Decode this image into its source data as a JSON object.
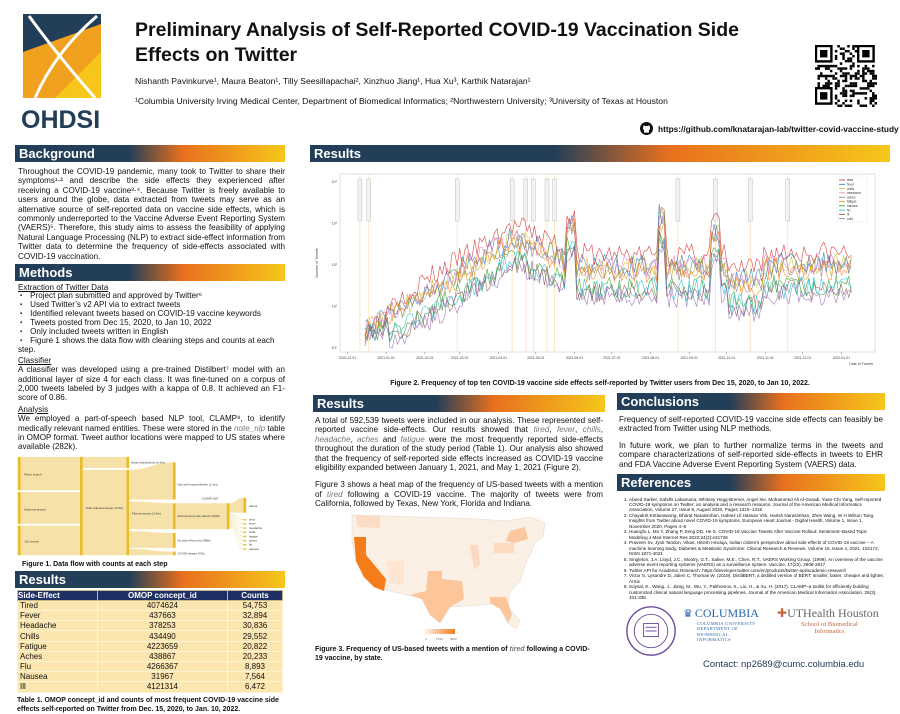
{
  "header": {
    "logo_text": "OHDSI",
    "title": "Preliminary Analysis of Self-Reported COVID-19 Vaccination Side Effects on Twitter",
    "authors": "Nishanth Pavinkurve¹, Maura Beaton¹, Tilly Seesillapachai², Xinzhuo Jiang¹, Hua Xu³, Karthik Natarajan¹",
    "affiliations": "¹Columbia University Irving Medical Center, Department of Biomedical Informatics; ²Northwestern University; ³University of Texas at Houston",
    "github_url": "https://github.com/knatarajan-lab/twitter-covid-vaccine-study"
  },
  "background": {
    "heading": "Background",
    "text": "Throughout the COVID-19 pandemic, many took to Twitter to share their symptoms¹·² and describe the side effects they experienced after receiving a COVID-19 vaccine³·⁴. Because Twitter is freely available to users around the globe, data extracted from tweets may serve as an alternative source of self-reported data on vaccine side effects, which is commonly underreported to the Vaccine Adverse Event Reporting System (VAERS)⁵. Therefore, this study aims to assess the feasibility of applying Natural Language Processing (NLP) to extract side-effect information from Twitter data to determine the frequency of side-effects associated with COVID-19 vaccination."
  },
  "methods": {
    "heading": "Methods",
    "extraction_title": "Extraction of Twitter Data",
    "bullets": [
      "Project plan submitted and approved by Twitter⁶",
      "Used Twitter’s v2 API via to extract tweets",
      "Identified relevant tweets based on COVID-19 vaccine keywords",
      "Tweets posted from Dec 15, 2020, to Jan 10, 2022",
      "Only included tweets written in English",
      "Figure 1 shows the data flow with cleaning steps and counts at each step."
    ],
    "classifier_title": "Classifier",
    "classifier_text": "A classifier was developed using a pre-trained Distilbert⁷ model with an additional layer of size 4 for each class. It was fine-tuned on a corpus of 2,000 tweets labeled by 3 judges with a kappa of 0.8. It achieved an F1-score of 0.86.",
    "analysis_title": "Analysis",
    "analysis_parts": [
      {
        "t": "We employed a part-of-speech based NLP tool, CLAMP⁸, to identify medically relevant named entities. These were stored in the "
      },
      {
        "t": "note_nlp",
        "i": true
      },
      {
        "t": " table in OMOP format. Tweet author locations were mapped to US states where available (282k)."
      }
    ]
  },
  "figure1": {
    "caption": "Figure 1. Data flow with counts at each step",
    "nodes": {
      "pfizer": "Pfizer search",
      "moderna": "Moderna search",
      "jnj": "J&J search",
      "total": "Total collected tweets (3.8m)",
      "news": "News articles/bots (0.4m)",
      "filtered": "Filtered tweets (3.4m)",
      "nonself": "Non-self reported/other (1.3m)",
      "selfrep": "Self-reported side-effects (600k)",
      "noside": "No side-effect info (480k)",
      "covid": "COVID-related (70k)",
      "clamp": "CLAMP NLP",
      "outs": [
        "others",
        "tired",
        "fever",
        "headache",
        "chills",
        "fatigue",
        "aches",
        "flu",
        "nausea"
      ]
    }
  },
  "table1": {
    "heading": "Results",
    "columns": [
      "Side-Effect",
      "OMOP concept_id",
      "Counts"
    ],
    "rows": [
      [
        "Tired",
        "4074624",
        "54,753"
      ],
      [
        "Fever",
        "437663",
        "32,894"
      ],
      [
        "Headache",
        "378253",
        "30,836"
      ],
      [
        "Chills",
        "434490",
        "29,552"
      ],
      [
        "Fatigue",
        "4223659",
        "20,822"
      ],
      [
        "Aches",
        "438867",
        "20,233"
      ],
      [
        "Flu",
        "4266367",
        "8,893"
      ],
      [
        "Nausea",
        "31967",
        "7,564"
      ],
      [
        "Ill",
        "4121314",
        "6,472"
      ]
    ],
    "caption": "Table 1. OMOP concept_id and counts of most frequent COVID-19 vaccine side effects self-reported on Twitter from Dec. 15, 2020, to Jan. 10, 2022."
  },
  "figure2": {
    "heading": "Results",
    "caption": "Figure 2. Frequency of top ten COVID-19 vaccine side effects self-reported by Twitter users from Dec 15, 2020, to Jan 10, 2022.",
    "xlabel": "Date of Tweets",
    "ylabel": "Number of Tweets",
    "scale": "log",
    "yticks": [
      "10⁰",
      "10¹",
      "10²",
      "10³",
      "10⁴"
    ],
    "xticks": [
      "2020-12-01",
      "2021-01-01",
      "2021-02-01",
      "2021-03-01",
      "2021-04-01",
      "2021-05-01",
      "2021-06-01",
      "2021-07-01",
      "2021-08-01",
      "2021-09-01",
      "2021-10-01",
      "2021-11-01",
      "2021-12-01",
      "2022-01-01"
    ],
    "legend_position": "top-right",
    "series": [
      {
        "name": "tired",
        "color": "#d62728"
      },
      {
        "name": "fever",
        "color": "#1f77b4"
      },
      {
        "name": "chills",
        "color": "#bcbd22"
      },
      {
        "name": "headache",
        "color": "#e377c2"
      },
      {
        "name": "aches",
        "color": "#7f7f7f"
      },
      {
        "name": "fatigue",
        "color": "#ff7f0e"
      },
      {
        "name": "nausea",
        "color": "#2ca02c"
      },
      {
        "name": "flu",
        "color": "#17becf"
      },
      {
        "name": "ill",
        "color": "#8c564b"
      },
      {
        "name": "cold",
        "color": "#9467bd"
      }
    ]
  },
  "results": {
    "heading": "Results",
    "p1_parts": [
      {
        "t": "A total of 592,539 tweets were included in our analysis. These represented self-reported vaccine side-effects. Our results showed that "
      },
      {
        "t": "tired",
        "i": true
      },
      {
        "t": ", "
      },
      {
        "t": "fever",
        "i": true
      },
      {
        "t": ", "
      },
      {
        "t": "chills",
        "i": true
      },
      {
        "t": ", "
      },
      {
        "t": "headache",
        "i": true
      },
      {
        "t": ", "
      },
      {
        "t": "aches",
        "i": true
      },
      {
        "t": " and "
      },
      {
        "t": "fatigue",
        "i": true
      },
      {
        "t": " were the most frequently reported side-effects throughout the duration of the study period (Table 1). Our analysis also showed that the frequency of self-reported side effects increased as COVID-19 vaccine eligibility expanded between January 1, 2021, and May 1, 2021 (Figure 2)."
      }
    ],
    "p2_parts": [
      {
        "t": "Figure 3 shows a heat map of the frequency of US-based tweets with a mention of "
      },
      {
        "t": "tired",
        "i": true
      },
      {
        "t": " following a COVID-19 vaccine. The majority of tweets were from California, followed by Texas, New York, Florida and Indiana."
      }
    ]
  },
  "figure3": {
    "caption_parts": [
      {
        "t": "Figure 3. Frequency of US-based tweets with a mention of "
      },
      {
        "t": "tired",
        "i": true
      },
      {
        "t": " following a COVID-19 vaccine, by state."
      }
    ],
    "scale_labels": [
      "0",
      "1750",
      "3500"
    ],
    "colors": {
      "low": "#fdf2ea",
      "high": "#f67c1a"
    }
  },
  "conclusions": {
    "heading": "Conclusions",
    "p1": "Frequency of self-reported COVID-19 vaccine side effects can feasibly be extracted from Twitter using NLP methods.",
    "p2": "In future work, we plan to further normalize terms in the tweets and compare characterizations of self-reported side-effects in tweets to EHR and FDA Vaccine Adverse Event Reporting System (VAERS) data."
  },
  "references": {
    "heading": "References",
    "items": [
      "Abeed Sarker, Sahithi Lakamana, Whitney Hogg-Bremer, Angel Xie, Mohammed Ali Al-Garadi, Yuan-Chi Yang, Self-reported COVID-19 symptoms on Twitter: an analysis and a research resource, Journal of the American Medical Informatics Association, Volume 27, Issue 8, August 2020, Pages 1310–1315",
      "Chayakrit Krittanawong, Bharat Narasimhan, Hafeez Ul Hassan Virk, Harish Narasimhan, Zhen Wang, W H Wilson Tang, Insights from Twitter about novel COVID-19 symptoms, European Heart Journal - Digital Health, Volume 1, Issue 1, November 2020, Pages 4–5",
      "Huangfu L, Mo Y, Zhang P, Zeng DD, He S. COVID-19 Vaccine Tweets After Vaccine Rollout: Sentiment–Based Topic Modeling J Med Internet Res 2022;24(2):e31726",
      "Praveen Sv, Jyoti Tandon, Vikas, Hitesh Hinduja, Indian citizen's perspective about side effects of COVID-19 vaccine – A machine learning study, Diabetes & Metabolic Syndrome: Clinical Research & Reviews, Volume 15, Issue 4, 2021, 102172, ISSN 1871-4021",
      "Singleton, J.A, Lloyd, J.C., Mootry, G.T., Salive, M.E., Chen, R.T., VAERS Working Group. (1999). An overview of the vaccine adverse event reporting systems (VAERS) as a surveillance system. Vaccine, 17(22), 2908-2917",
      "Twitter API for Academic Research: https://developer.twitter.com/en/products/twitter-api/academic-research",
      "Victor S, Lysandre D, Julien C, Thomas W. (2019). DistilBERT, a distilled version of BERT: smaller, faster, cheaper and lighter, ArXiv",
      "Soysal, E., Wang, J., Jiang, M., Wu, Y., Pakhomov, S., Liu, H., & Xu, H. (2017). CLAMP–a toolkit for efficiently building customized clinical natural language processing pipelines. Journal of the American Medical Informatics Association, 25(3), 331-336."
    ]
  },
  "logos": {
    "northwestern": "NORTHWESTERN UNIVERSITY 1851",
    "columbia": "COLUMBIA",
    "columbia_sub": "COLUMBIA UNIVERSITY DEPARTMENT OF BIOMEDICAL INFORMATICS",
    "uthealth": "UTHealth Houston",
    "uthealth_sub": "School of Biomedical Informatics"
  },
  "contact": "Contact:  np2689@cumc.columbia.edu"
}
